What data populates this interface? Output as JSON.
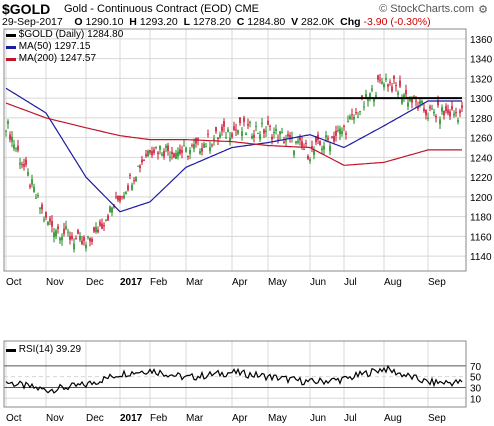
{
  "header": {
    "symbol": "$GOLD",
    "name": "Gold - Continuous Contract (EOD)",
    "exchange": "CME",
    "watermark": "© StockCharts.com",
    "settings_icon": "gear-icon",
    "date": "29-Sep-2017",
    "open_label": "O",
    "open": "1290.10",
    "high_label": "H",
    "high": "1293.20",
    "low_label": "L",
    "low": "1278.20",
    "close_label": "C",
    "close": "1284.80",
    "volume_label": "V",
    "volume": "282.0K",
    "chg_label": "Chg",
    "chg": "-3.90 (-0.30%)"
  },
  "price_panel": {
    "legend": [
      {
        "label": "$GOLD (Daily) 1284.80",
        "color": "#000000",
        "icon": "line-swatch"
      },
      {
        "label": "MA(50) 1297.15",
        "color": "#1c1ca0",
        "icon": "line-swatch"
      },
      {
        "label": "MA(200) 1247.57",
        "color": "#c0142a",
        "icon": "line-swatch"
      }
    ],
    "y_ticks": [
      "1360",
      "1340",
      "1320",
      "1300",
      "1280",
      "1260",
      "1240",
      "1220",
      "1200",
      "1180",
      "1160",
      "1140"
    ],
    "ylim": [
      1125,
      1370
    ]
  },
  "rsi_panel": {
    "legend": "RSI(14) 39.29",
    "y_ticks": [
      "70",
      "50",
      "30",
      "10"
    ]
  },
  "x_axis": {
    "labels": [
      "Oct",
      "Nov",
      "Dec",
      "2017",
      "Feb",
      "Mar",
      "Apr",
      "May",
      "Jun",
      "Jul",
      "Aug",
      "Sep"
    ]
  },
  "colors": {
    "up": "#1a8a1a",
    "down": "#c8102e",
    "ma50": "#1c1ca0",
    "ma200": "#c0142a",
    "rsi": "#000000",
    "rsi_fill": "#777777",
    "grid": "#d8d8d8"
  },
  "chart_data": {
    "type": "candlestick",
    "resistance_level": 1300,
    "monthly": [
      {
        "month": "Oct",
        "close": 1275,
        "ma50": 1310,
        "ma200": 1295,
        "rsi": 40
      },
      {
        "month": "Nov",
        "close": 1175,
        "ma50": 1285,
        "ma200": 1280,
        "rsi": 25
      },
      {
        "month": "Dec",
        "close": 1150,
        "ma50": 1220,
        "ma200": 1270,
        "rsi": 35
      },
      {
        "month": "2017",
        "close": 1200,
        "ma50": 1185,
        "ma200": 1262,
        "rsi": 55
      },
      {
        "month": "Feb",
        "close": 1250,
        "ma50": 1195,
        "ma200": 1258,
        "rsi": 62
      },
      {
        "month": "Mar",
        "close": 1245,
        "ma50": 1230,
        "ma200": 1258,
        "rsi": 48
      },
      {
        "month": "Apr",
        "close": 1268,
        "ma50": 1250,
        "ma200": 1256,
        "rsi": 58
      },
      {
        "month": "May",
        "close": 1268,
        "ma50": 1255,
        "ma200": 1252,
        "rsi": 50
      },
      {
        "month": "Jun",
        "close": 1245,
        "ma50": 1263,
        "ma200": 1250,
        "rsi": 40
      },
      {
        "month": "Jul",
        "close": 1268,
        "ma50": 1250,
        "ma200": 1232,
        "rsi": 45
      },
      {
        "month": "Aug",
        "close": 1320,
        "ma50": 1272,
        "ma200": 1235,
        "rsi": 65
      },
      {
        "month": "Sep",
        "close": 1284.8,
        "ma50": 1297.15,
        "ma200": 1247.57,
        "rsi": 39.29
      }
    ]
  }
}
